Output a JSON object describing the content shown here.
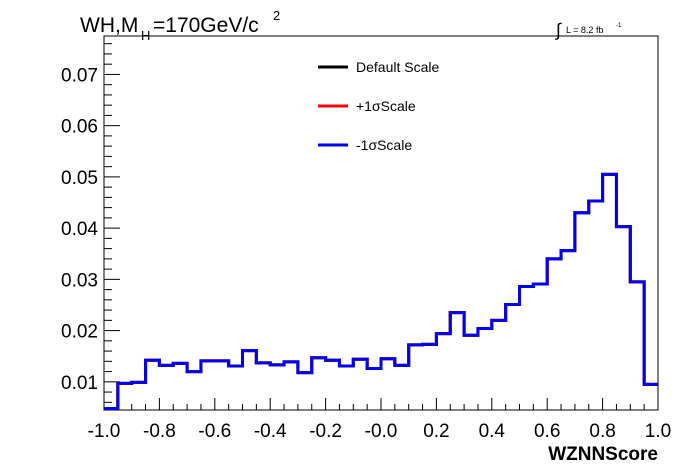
{
  "title": {
    "prefix": "WH,M",
    "subscript": "H",
    "value": "=170GeV/c",
    "superscript": "2"
  },
  "lumi": {
    "integral": "∫",
    "text": "L = 8.2 fb",
    "superscript": "-1"
  },
  "chart_data": {
    "type": "line",
    "style": "step-histogram",
    "xlabel": "WZNNScore",
    "ylabel": "",
    "xlim": [
      -1.0,
      1.0
    ],
    "ylim": [
      0.0045,
      0.0775
    ],
    "x_ticks": [
      "-1.0",
      "-0.8",
      "-0.6",
      "-0.4",
      "-0.2",
      "-0.0",
      "0.2",
      "0.4",
      "0.6",
      "0.8",
      "1.0"
    ],
    "y_ticks": [
      "0.01",
      "0.02",
      "0.03",
      "0.04",
      "0.05",
      "0.06",
      "0.07"
    ],
    "legend_position": "top-center",
    "grid": false,
    "bin_edges": [
      -1.0,
      -0.95,
      -0.9,
      -0.85,
      -0.8,
      -0.75,
      -0.7,
      -0.65,
      -0.6,
      -0.55,
      -0.5,
      -0.45,
      -0.4,
      -0.35,
      -0.3,
      -0.25,
      -0.2,
      -0.15,
      -0.1,
      -0.05,
      0.0,
      0.05,
      0.1,
      0.15,
      0.2,
      0.25,
      0.3,
      0.35,
      0.4,
      0.45,
      0.5,
      0.55,
      0.6,
      0.65,
      0.7,
      0.75,
      0.8,
      0.85,
      0.9,
      0.95,
      1.0
    ],
    "series": [
      {
        "name": "Default Scale",
        "color": "#000000",
        "values": [
          0.0048,
          0.0097,
          0.0099,
          0.0142,
          0.0132,
          0.0136,
          0.012,
          0.0141,
          0.0141,
          0.0131,
          0.0161,
          0.0137,
          0.0133,
          0.0139,
          0.0118,
          0.0147,
          0.0142,
          0.0131,
          0.0144,
          0.0126,
          0.0145,
          0.0132,
          0.0172,
          0.0173,
          0.0194,
          0.0235,
          0.0191,
          0.0204,
          0.022,
          0.0251,
          0.0286,
          0.0291,
          0.034,
          0.0356,
          0.043,
          0.0453,
          0.0505,
          0.0403,
          0.0295,
          0.0095
        ]
      },
      {
        "name": "+1σScale",
        "color": "#ff0000",
        "values": [
          0.0048,
          0.0097,
          0.0099,
          0.0142,
          0.0132,
          0.0136,
          0.012,
          0.0141,
          0.0141,
          0.0131,
          0.0161,
          0.0137,
          0.0133,
          0.0139,
          0.0118,
          0.0147,
          0.0142,
          0.0131,
          0.0144,
          0.0126,
          0.0145,
          0.0132,
          0.0172,
          0.0173,
          0.0194,
          0.0235,
          0.0191,
          0.0204,
          0.022,
          0.0251,
          0.0286,
          0.0291,
          0.034,
          0.0356,
          0.043,
          0.0453,
          0.0505,
          0.0403,
          0.0295,
          0.0095
        ]
      },
      {
        "name": "-1σScale",
        "color": "#0000ee",
        "values": [
          0.0048,
          0.0097,
          0.0099,
          0.0142,
          0.0132,
          0.0136,
          0.012,
          0.0141,
          0.0141,
          0.0131,
          0.0161,
          0.0137,
          0.0133,
          0.0139,
          0.0118,
          0.0147,
          0.0142,
          0.0131,
          0.0144,
          0.0126,
          0.0145,
          0.0132,
          0.0172,
          0.0173,
          0.0194,
          0.0235,
          0.0191,
          0.0204,
          0.022,
          0.0251,
          0.0286,
          0.0291,
          0.034,
          0.0356,
          0.043,
          0.0453,
          0.0505,
          0.0403,
          0.0295,
          0.0095
        ]
      }
    ]
  }
}
